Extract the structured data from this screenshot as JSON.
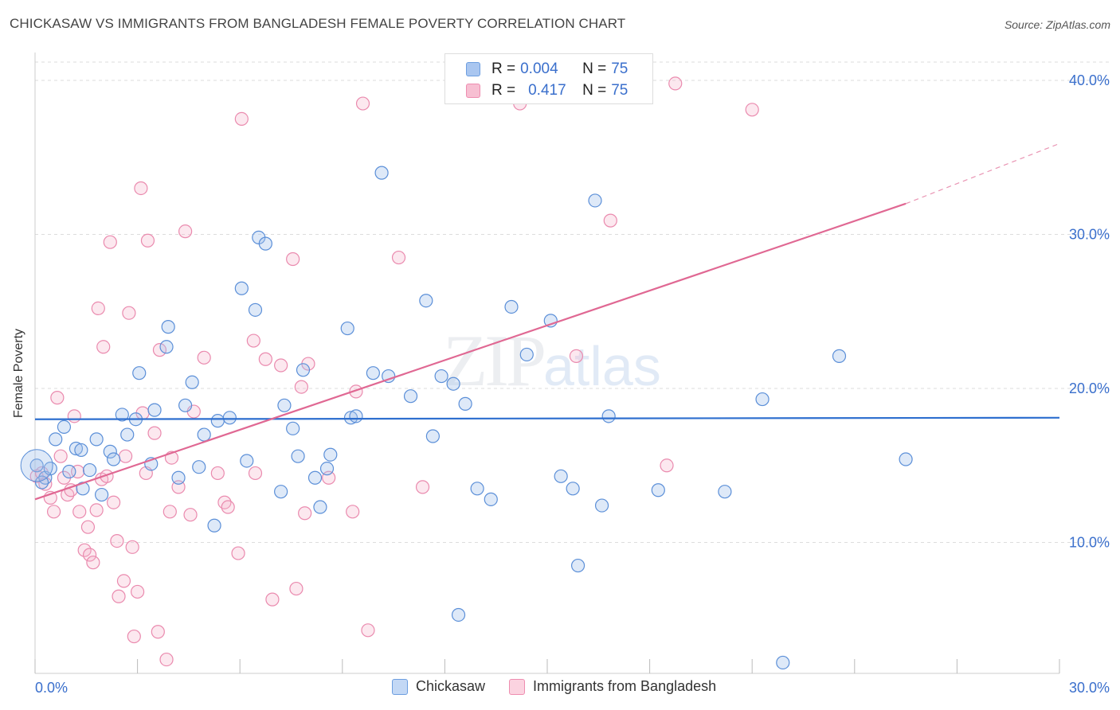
{
  "header": {
    "title": "CHICKASAW VS IMMIGRANTS FROM BANGLADESH FEMALE POVERTY CORRELATION CHART",
    "source": "Source: ZipAtlas.com"
  },
  "watermark": {
    "zip": "ZIP",
    "atlas": "atlas"
  },
  "legend": {
    "rows": [
      {
        "r_label": "R =",
        "r_value": "0.004",
        "n_label": "N =",
        "n_value": "75",
        "color": "#a9c6f0",
        "border": "#6d9ee0"
      },
      {
        "r_label": "R =",
        "r_value": "0.417",
        "n_label": "N =",
        "n_value": "75",
        "color": "#f7bfd2",
        "border": "#ee8db0"
      }
    ]
  },
  "bottom_legend": {
    "items": [
      {
        "label": "Chickasaw",
        "color": "#c3d8f5",
        "border": "#6d9ee0"
      },
      {
        "label": "Immigrants from Bangladesh",
        "color": "#fbd3e0",
        "border": "#ee8db0"
      }
    ]
  },
  "colors": {
    "blue_fill": "rgba(160,192,236,0.35)",
    "blue_stroke": "#5b8fd8",
    "blue_line": "#2e6fcf",
    "pink_fill": "rgba(246,180,203,0.30)",
    "pink_stroke": "#ea8aae",
    "pink_line": "#e06893",
    "grid": "#dddddd",
    "tick_text": "#3a6fcc"
  },
  "chart_data": {
    "type": "scatter",
    "title": "CHICKASAW VS IMMIGRANTS FROM BANGLADESH FEMALE POVERTY CORRELATION CHART",
    "xlabel": "",
    "ylabel": "Female Poverty",
    "xlim": [
      0,
      30
    ],
    "ylim": [
      1.5,
      41.5
    ],
    "x_tick_labels": [
      "0.0%",
      "30.0%"
    ],
    "y_ticks": [
      10,
      20,
      30,
      40
    ],
    "y_tick_labels": [
      "10.0%",
      "20.0%",
      "30.0%",
      "40.0%"
    ],
    "grid": true,
    "legend_position": "top-center",
    "series": [
      {
        "name": "Chickasaw",
        "r": 0.004,
        "n": 75,
        "trend": {
          "x": [
            0,
            30
          ],
          "y": [
            18.0,
            18.1
          ]
        },
        "points": [
          [
            0.05,
            15.0
          ],
          [
            0.3,
            14.2
          ],
          [
            0.45,
            14.8
          ],
          [
            0.6,
            16.7
          ],
          [
            0.85,
            17.5
          ],
          [
            1.0,
            14.6
          ],
          [
            1.2,
            16.1
          ],
          [
            1.35,
            16.0
          ],
          [
            1.6,
            14.7
          ],
          [
            1.8,
            16.7
          ],
          [
            1.95,
            13.1
          ],
          [
            2.2,
            15.9
          ],
          [
            2.3,
            15.4
          ],
          [
            2.55,
            18.3
          ],
          [
            2.7,
            17.0
          ],
          [
            2.95,
            18.0
          ],
          [
            3.05,
            21.0
          ],
          [
            3.4,
            15.1
          ],
          [
            3.5,
            18.6
          ],
          [
            3.85,
            22.7
          ],
          [
            3.9,
            24.0
          ],
          [
            4.2,
            14.2
          ],
          [
            4.4,
            18.9
          ],
          [
            4.6,
            20.4
          ],
          [
            4.8,
            14.9
          ],
          [
            4.95,
            17.0
          ],
          [
            5.25,
            11.1
          ],
          [
            5.35,
            17.9
          ],
          [
            5.7,
            18.1
          ],
          [
            6.05,
            26.5
          ],
          [
            6.2,
            15.3
          ],
          [
            6.45,
            25.1
          ],
          [
            6.55,
            29.8
          ],
          [
            6.75,
            29.4
          ],
          [
            7.2,
            13.3
          ],
          [
            7.3,
            18.9
          ],
          [
            7.55,
            17.4
          ],
          [
            7.7,
            15.6
          ],
          [
            7.85,
            21.2
          ],
          [
            8.2,
            14.2
          ],
          [
            8.35,
            12.3
          ],
          [
            8.55,
            14.8
          ],
          [
            8.65,
            15.7
          ],
          [
            9.15,
            23.9
          ],
          [
            9.25,
            18.1
          ],
          [
            9.4,
            18.2
          ],
          [
            9.9,
            21.0
          ],
          [
            10.15,
            34.0
          ],
          [
            10.35,
            20.8
          ],
          [
            11.0,
            19.5
          ],
          [
            11.45,
            25.7
          ],
          [
            11.65,
            16.9
          ],
          [
            11.9,
            20.8
          ],
          [
            12.25,
            20.3
          ],
          [
            12.4,
            5.3
          ],
          [
            12.6,
            19.0
          ],
          [
            12.95,
            13.5
          ],
          [
            13.35,
            12.8
          ],
          [
            13.95,
            25.3
          ],
          [
            14.4,
            22.2
          ],
          [
            15.1,
            24.4
          ],
          [
            15.4,
            14.3
          ],
          [
            15.75,
            13.5
          ],
          [
            15.9,
            8.5
          ],
          [
            16.4,
            32.2
          ],
          [
            16.6,
            12.4
          ],
          [
            16.8,
            18.2
          ],
          [
            18.25,
            13.4
          ],
          [
            20.2,
            13.3
          ],
          [
            21.3,
            19.3
          ],
          [
            21.9,
            2.2
          ],
          [
            23.55,
            22.1
          ],
          [
            25.5,
            15.4
          ],
          [
            0.2,
            13.9
          ],
          [
            1.4,
            13.5
          ]
        ]
      },
      {
        "name": "Immigrants from Bangladesh",
        "r": 0.417,
        "n": 75,
        "trend": {
          "x": [
            0,
            25.5
          ],
          "y": [
            12.8,
            32.0
          ]
        },
        "trend_dashed": {
          "x": [
            25.5,
            30
          ],
          "y": [
            32.0,
            35.9
          ]
        },
        "points": [
          [
            0.05,
            14.3
          ],
          [
            0.3,
            13.8
          ],
          [
            0.45,
            12.9
          ],
          [
            0.55,
            12.0
          ],
          [
            0.65,
            19.4
          ],
          [
            0.75,
            15.6
          ],
          [
            0.85,
            14.2
          ],
          [
            0.95,
            13.1
          ],
          [
            1.05,
            13.4
          ],
          [
            1.15,
            18.2
          ],
          [
            1.3,
            12.0
          ],
          [
            1.45,
            9.5
          ],
          [
            1.55,
            11.0
          ],
          [
            1.6,
            9.2
          ],
          [
            1.7,
            8.7
          ],
          [
            1.8,
            12.1
          ],
          [
            1.85,
            25.2
          ],
          [
            1.95,
            14.1
          ],
          [
            2.0,
            22.7
          ],
          [
            2.2,
            29.5
          ],
          [
            2.3,
            12.6
          ],
          [
            2.4,
            10.1
          ],
          [
            2.45,
            6.5
          ],
          [
            2.6,
            7.5
          ],
          [
            2.65,
            15.6
          ],
          [
            2.75,
            24.9
          ],
          [
            2.85,
            9.7
          ],
          [
            2.9,
            3.9
          ],
          [
            3.0,
            6.8
          ],
          [
            3.1,
            33.0
          ],
          [
            3.15,
            18.4
          ],
          [
            3.25,
            14.5
          ],
          [
            3.3,
            29.6
          ],
          [
            3.5,
            17.1
          ],
          [
            3.6,
            4.2
          ],
          [
            3.65,
            22.5
          ],
          [
            3.85,
            2.4
          ],
          [
            3.95,
            12.0
          ],
          [
            4.0,
            15.5
          ],
          [
            4.2,
            13.6
          ],
          [
            4.4,
            30.2
          ],
          [
            4.55,
            11.8
          ],
          [
            4.65,
            18.5
          ],
          [
            4.95,
            22.0
          ],
          [
            5.35,
            14.5
          ],
          [
            5.55,
            12.6
          ],
          [
            5.65,
            12.3
          ],
          [
            5.95,
            9.3
          ],
          [
            6.05,
            37.5
          ],
          [
            6.4,
            23.1
          ],
          [
            6.45,
            14.5
          ],
          [
            6.75,
            21.9
          ],
          [
            6.95,
            6.3
          ],
          [
            7.2,
            21.5
          ],
          [
            7.55,
            28.4
          ],
          [
            7.65,
            7.0
          ],
          [
            7.8,
            20.1
          ],
          [
            7.9,
            11.9
          ],
          [
            8.0,
            21.6
          ],
          [
            8.6,
            14.2
          ],
          [
            9.3,
            12.0
          ],
          [
            9.4,
            19.8
          ],
          [
            9.6,
            38.5
          ],
          [
            9.75,
            4.3
          ],
          [
            10.65,
            28.5
          ],
          [
            11.35,
            13.6
          ],
          [
            14.2,
            38.5
          ],
          [
            15.85,
            22.1
          ],
          [
            16.85,
            30.9
          ],
          [
            18.5,
            15.0
          ],
          [
            18.75,
            39.8
          ],
          [
            21.0,
            38.1
          ],
          [
            0.2,
            14.5
          ],
          [
            1.25,
            14.6
          ],
          [
            2.1,
            14.3
          ]
        ]
      }
    ]
  }
}
